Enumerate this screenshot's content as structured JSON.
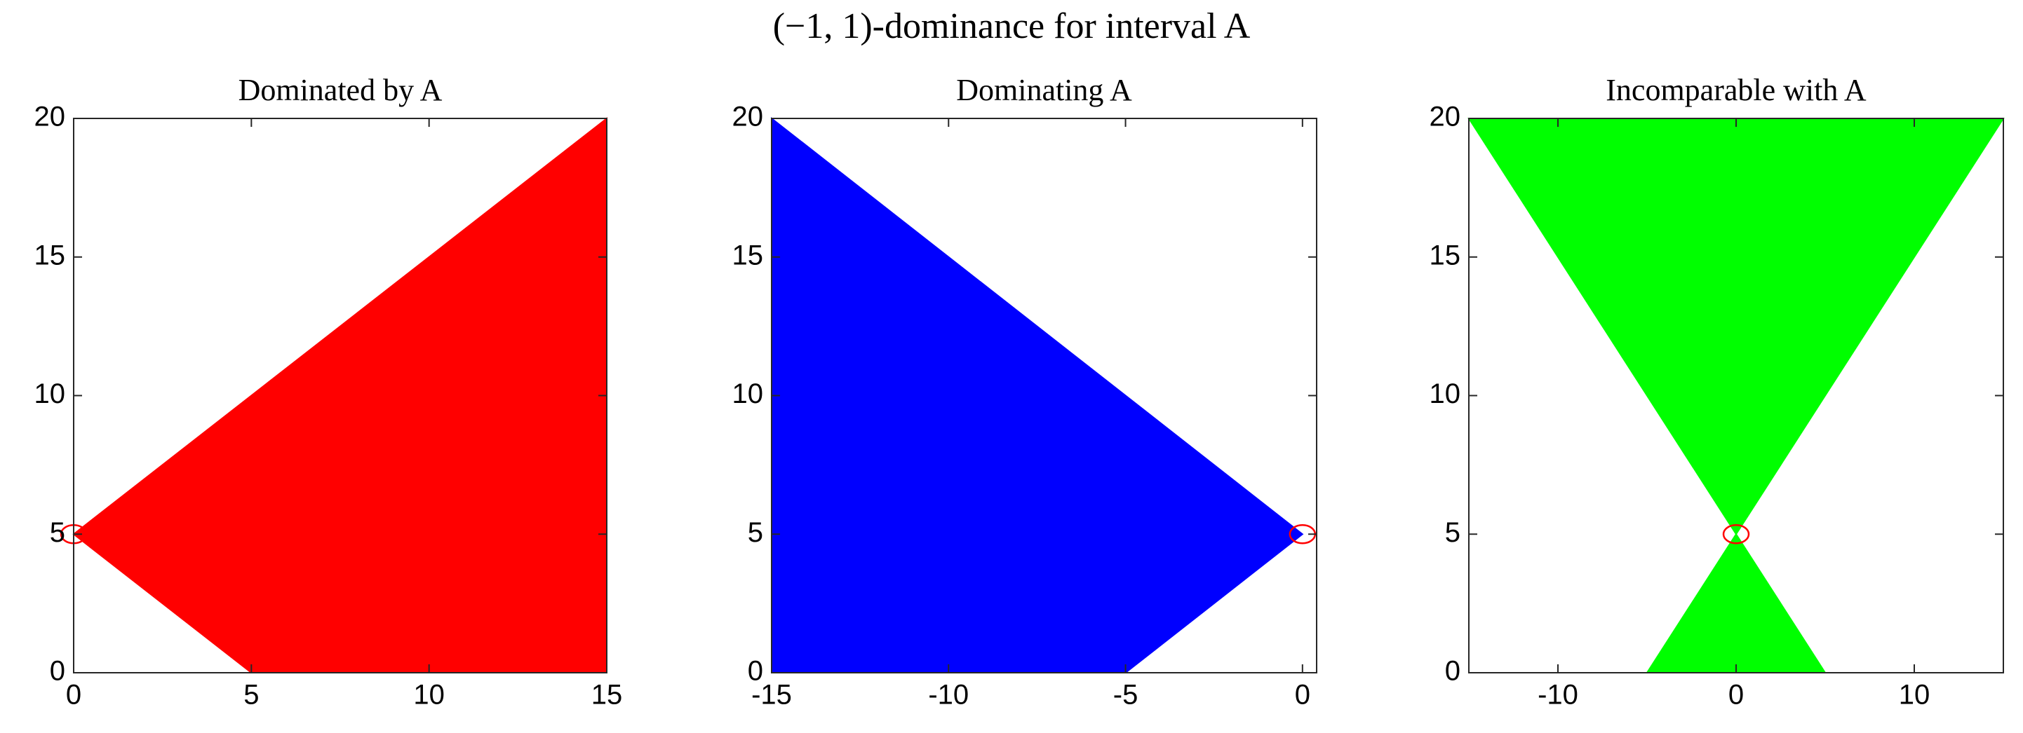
{
  "title": "(−1, 1)-dominance for interval A",
  "chart_data": [
    {
      "type": "area",
      "title": "Dominated by A",
      "series": [
        {
          "color": "#ff0000",
          "x": [
            0,
            15,
            15,
            5
          ],
          "y": [
            5,
            20,
            0,
            0
          ]
        }
      ],
      "marker": {
        "x": 0,
        "y": 5,
        "color": "#ff0000"
      },
      "xlim": [
        0,
        15
      ],
      "ylim": [
        0,
        20
      ],
      "xticks": [
        0,
        5,
        10,
        15
      ],
      "yticks": [
        0,
        5,
        10,
        15,
        20
      ]
    },
    {
      "type": "area",
      "title": "Dominating A",
      "series": [
        {
          "color": "#0000ff",
          "x": [
            0,
            -15,
            -15,
            -5
          ],
          "y": [
            5,
            20,
            0,
            0
          ]
        }
      ],
      "marker": {
        "x": 0,
        "y": 5,
        "color": "#ff0000"
      },
      "xlim": [
        -15,
        0.4
      ],
      "ylim": [
        0,
        20
      ],
      "xticks": [
        -15,
        -10,
        -5,
        0
      ],
      "yticks": [
        0,
        5,
        10,
        15,
        20
      ]
    },
    {
      "type": "area",
      "title": "Incomparable with A",
      "series": [
        {
          "color": "#00ff00",
          "x": [
            -15,
            15,
            0,
            null,
            -5,
            5,
            0
          ],
          "y": [
            20,
            20,
            5,
            null,
            0,
            0,
            5
          ]
        }
      ],
      "marker": {
        "x": 0,
        "y": 5,
        "color": "#ff0000"
      },
      "xlim": [
        -15,
        15
      ],
      "ylim": [
        0,
        20
      ],
      "xticks": [
        -10,
        0,
        10
      ],
      "yticks": [
        0,
        5,
        10,
        15,
        20
      ]
    }
  ]
}
